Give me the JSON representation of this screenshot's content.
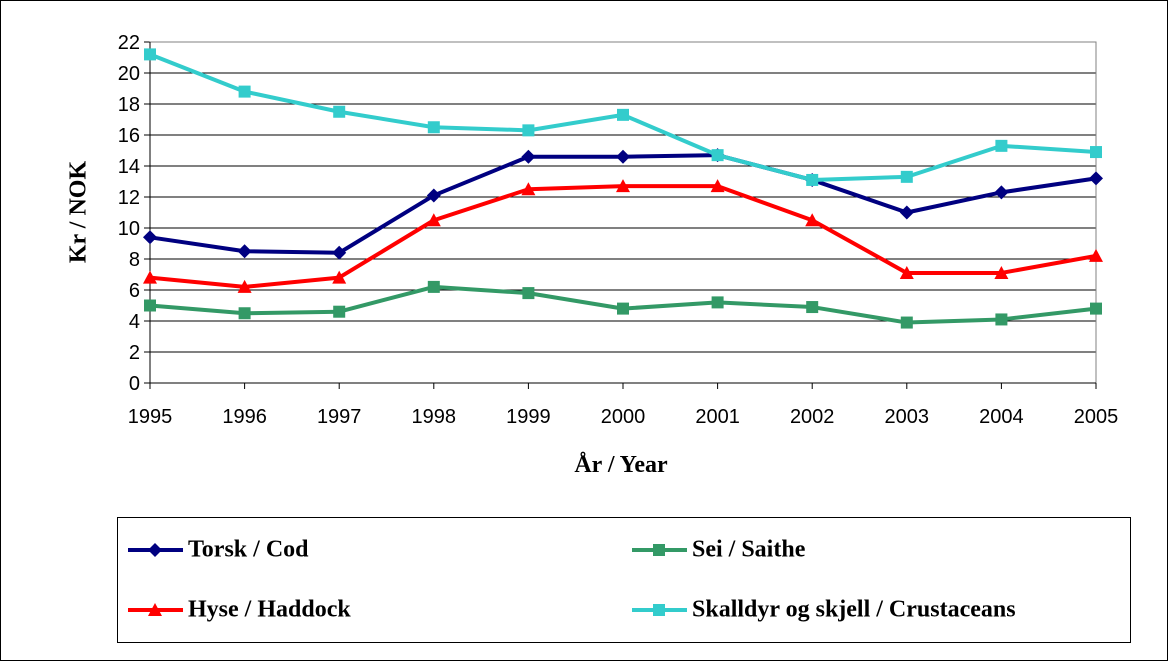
{
  "chart_data": {
    "type": "line",
    "x_label": "År / Year",
    "y_label": "Kr / NOK",
    "x": [
      1995,
      1996,
      1997,
      1998,
      1999,
      2000,
      2001,
      2002,
      2003,
      2004,
      2005
    ],
    "xlim": [
      1995,
      2005
    ],
    "xticks": [
      1995,
      1996,
      1997,
      1998,
      1999,
      2000,
      2001,
      2002,
      2003,
      2004,
      2005
    ],
    "ylim": [
      0,
      22
    ],
    "yticks": [
      0,
      2,
      4,
      6,
      8,
      10,
      12,
      14,
      16,
      18,
      20,
      22
    ],
    "grid": true,
    "legend": "bottom",
    "series": [
      {
        "name": "Torsk / Cod",
        "color": "#000080",
        "marker": "diamond",
        "values": [
          9.4,
          8.5,
          8.4,
          12.1,
          14.6,
          14.6,
          14.7,
          13.1,
          11.0,
          12.3,
          13.2
        ]
      },
      {
        "name": "Sei / Saithe",
        "color": "#339966",
        "marker": "square",
        "values": [
          5.0,
          4.5,
          4.6,
          6.2,
          5.8,
          4.8,
          5.2,
          4.9,
          3.9,
          4.1,
          4.8
        ]
      },
      {
        "name": "Hyse / Haddock",
        "color": "#ff0000",
        "marker": "triangle",
        "values": [
          6.8,
          6.2,
          6.8,
          10.5,
          12.5,
          12.7,
          12.7,
          10.5,
          7.1,
          7.1,
          8.2
        ]
      },
      {
        "name": "Skalldyr og skjell / Crustaceans",
        "color": "#33cccc",
        "marker": "square",
        "values": [
          21.2,
          18.8,
          17.5,
          16.5,
          16.3,
          17.3,
          14.7,
          13.1,
          13.3,
          15.3,
          14.9
        ]
      }
    ]
  }
}
